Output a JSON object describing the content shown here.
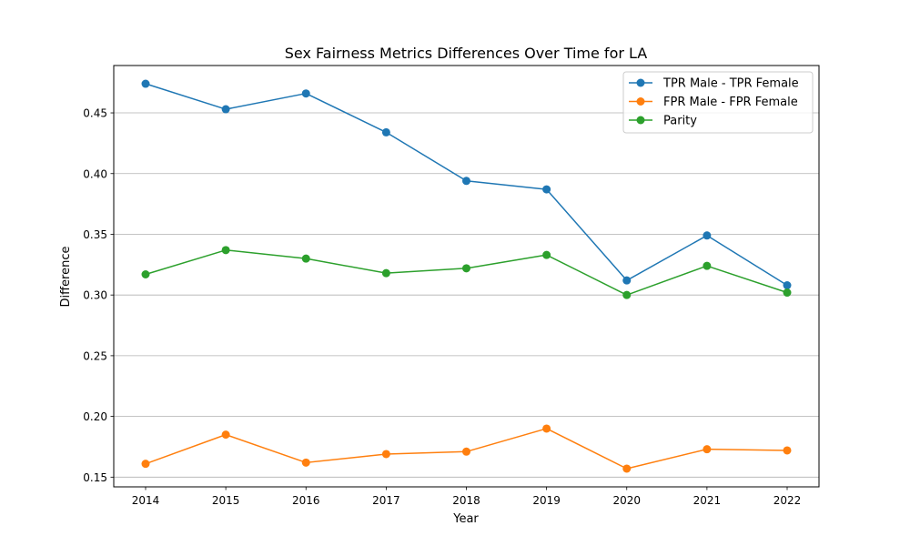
{
  "chart_data": {
    "type": "line",
    "title": "Sex Fairness Metrics Differences Over Time for LA",
    "xlabel": "Year",
    "ylabel": "Difference",
    "x": [
      2014,
      2015,
      2016,
      2017,
      2018,
      2019,
      2020,
      2021,
      2022
    ],
    "x_tick_labels": [
      "2014",
      "2015",
      "2016",
      "2017",
      "2018",
      "2019",
      "2020",
      "2021",
      "2022"
    ],
    "ylim": [
      0.142,
      0.489
    ],
    "y_ticks": [
      0.15,
      0.2,
      0.25,
      0.3,
      0.35,
      0.4,
      0.45
    ],
    "y_tick_labels": [
      "0.15",
      "0.20",
      "0.25",
      "0.30",
      "0.35",
      "0.40",
      "0.45"
    ],
    "grid": "horizontal",
    "legend_position": "top-right",
    "series": [
      {
        "name": "TPR Male - TPR Female",
        "color": "#1f77b4",
        "values": [
          0.474,
          0.453,
          0.466,
          0.434,
          0.394,
          0.387,
          0.312,
          0.349,
          0.308
        ]
      },
      {
        "name": "FPR Male - FPR Female",
        "color": "#ff7f0e",
        "values": [
          0.161,
          0.185,
          0.162,
          0.169,
          0.171,
          0.19,
          0.157,
          0.173,
          0.172
        ]
      },
      {
        "name": "Parity",
        "color": "#2ca02c",
        "values": [
          0.317,
          0.337,
          0.33,
          0.318,
          0.322,
          0.333,
          0.3,
          0.324,
          0.302
        ]
      }
    ]
  }
}
